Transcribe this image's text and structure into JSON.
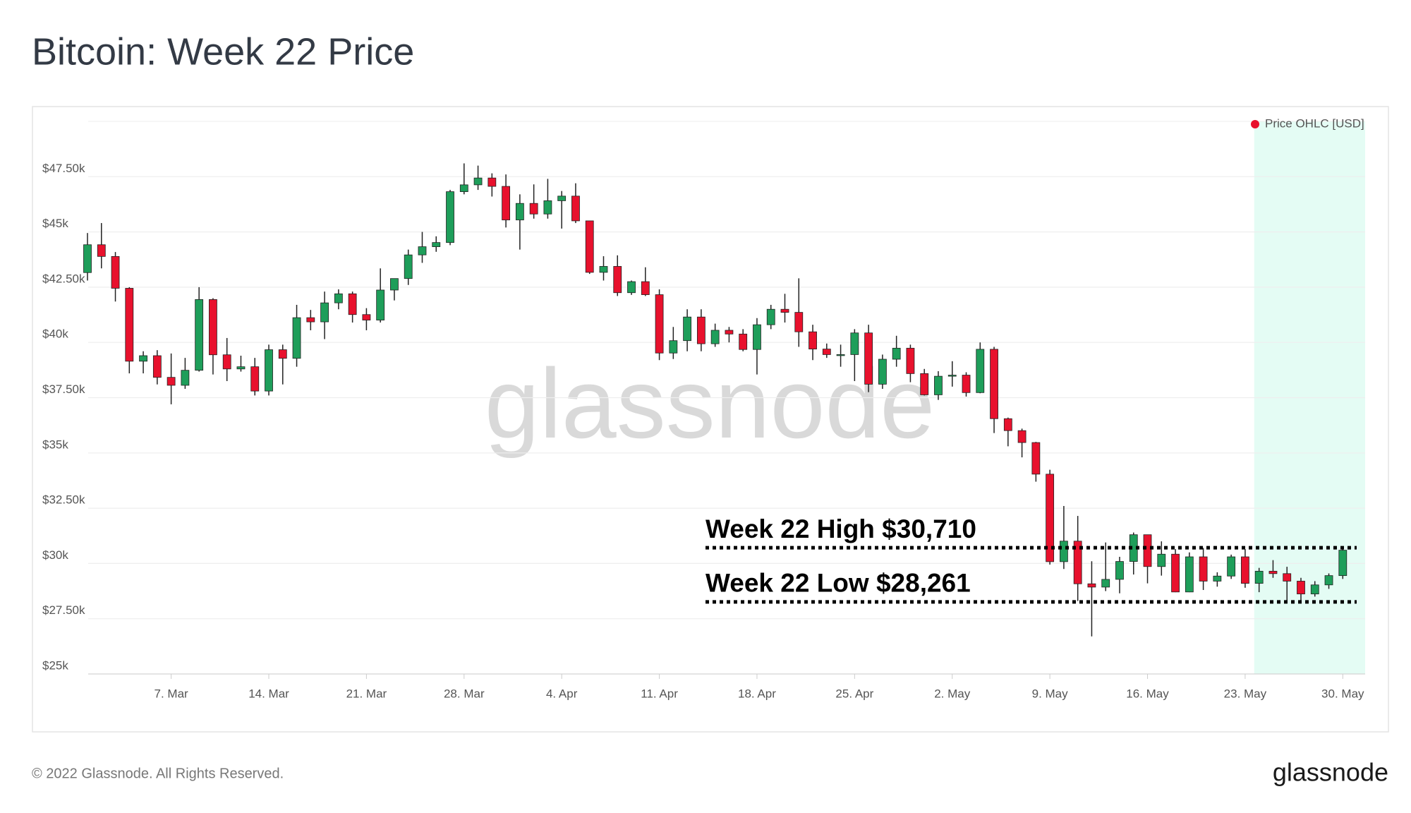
{
  "header": {
    "title": "Bitcoin: Week 22 Price"
  },
  "chart_data": {
    "type": "candlestick",
    "legend": "Price OHLC [USD]",
    "legend_color": "#e8112d",
    "legend_position": "upper right",
    "watermark": "glassnode",
    "up_color": "#1e9e5a",
    "down_color": "#e8112d",
    "categories": [
      "1. Mar",
      "2. Mar",
      "3. Mar",
      "4. Mar",
      "5. Mar",
      "6. Mar",
      "7. Mar",
      "8. Mar",
      "9. Mar",
      "10. Mar",
      "11. Mar",
      "12. Mar",
      "13. Mar",
      "14. Mar",
      "15. Mar",
      "16. Mar",
      "17. Mar",
      "18. Mar",
      "19. Mar",
      "20. Mar",
      "21. Mar",
      "22. Mar",
      "23. Mar",
      "24. Mar",
      "25. Mar",
      "26. Mar",
      "27. Mar",
      "28. Mar",
      "29. Mar",
      "30. Mar",
      "31. Mar",
      "1. Apr",
      "2. Apr",
      "3. Apr",
      "4. Apr",
      "5. Apr",
      "6. Apr",
      "7. Apr",
      "8. Apr",
      "9. Apr",
      "10. Apr",
      "11. Apr",
      "12. Apr",
      "13. Apr",
      "14. Apr",
      "15. Apr",
      "16. Apr",
      "17. Apr",
      "18. Apr",
      "19. Apr",
      "20. Apr",
      "21. Apr",
      "22. Apr",
      "23. Apr",
      "24. Apr",
      "25. Apr",
      "26. Apr",
      "27. Apr",
      "28. Apr",
      "29. Apr",
      "30. Apr",
      "1. May",
      "2. May",
      "3. May",
      "4. May",
      "5. May",
      "6. May",
      "7. May",
      "8. May",
      "9. May",
      "10. May",
      "11. May",
      "12. May",
      "13. May",
      "14. May",
      "15. May",
      "16. May",
      "17. May",
      "18. May",
      "19. May",
      "20. May",
      "21. May",
      "22. May",
      "23. May",
      "24. May",
      "25. May",
      "26. May",
      "27. May",
      "28. May",
      "29. May",
      "30. May"
    ],
    "open": [
      43160,
      44420,
      43890,
      42450,
      39150,
      39400,
      38420,
      38060,
      38740,
      41940,
      39440,
      38800,
      38900,
      37800,
      39670,
      39280,
      41120,
      40930,
      41790,
      42200,
      41260,
      41010,
      42370,
      42890,
      43960,
      44330,
      44520,
      46820,
      47130,
      47440,
      47060,
      45540,
      46290,
      45810,
      46410,
      46620,
      45500,
      43170,
      43440,
      42250,
      42750,
      42160,
      39520,
      40080,
      41150,
      39940,
      40550,
      40380,
      39680,
      40800,
      41500,
      41360,
      40480,
      39700,
      39450,
      39450,
      40430,
      38110,
      39240,
      39740,
      38590,
      37630,
      38470,
      38520,
      37730,
      39690,
      36550,
      36010,
      35470,
      34040,
      30080,
      31010,
      29080,
      28930,
      29280,
      30090,
      31300,
      29860,
      30420,
      28710,
      30300,
      29200,
      29430,
      30300,
      29100,
      29650,
      29540,
      29200,
      28620,
      29030,
      29450
    ],
    "high": [
      44950,
      45400,
      44090,
      42500,
      39600,
      39650,
      39500,
      39300,
      42500,
      42000,
      40200,
      39400,
      39300,
      39900,
      39900,
      41700,
      41470,
      42300,
      42400,
      42300,
      41550,
      43350,
      42850,
      44200,
      45000,
      44800,
      46900,
      48100,
      48000,
      47650,
      47600,
      46700,
      47150,
      47400,
      46850,
      47200,
      45500,
      43900,
      43940,
      42800,
      43400,
      42400,
      40700,
      41500,
      41500,
      40850,
      40700,
      40600,
      41100,
      41700,
      42200,
      42900,
      40800,
      39950,
      39900,
      40600,
      40800,
      39450,
      40300,
      39900,
      38800,
      38700,
      39150,
      38650,
      40000,
      39800,
      36600,
      36100,
      35500,
      34240,
      32600,
      32150,
      30100,
      30950,
      30300,
      31400,
      31300,
      31000,
      30650,
      30500,
      30700,
      29600,
      30400,
      30650,
      29800,
      30150,
      29850,
      29350,
      29200,
      29550,
      30710
    ],
    "low": [
      42800,
      43350,
      41850,
      38600,
      38600,
      38100,
      37200,
      37900,
      38680,
      38550,
      38250,
      38680,
      37600,
      37600,
      38100,
      38900,
      40550,
      40150,
      41500,
      40900,
      40550,
      40900,
      41900,
      42600,
      43600,
      44100,
      44400,
      46700,
      46900,
      46600,
      45200,
      44200,
      45600,
      45600,
      45150,
      45400,
      43100,
      42800,
      42100,
      42150,
      42100,
      39200,
      39250,
      39600,
      39600,
      39800,
      40000,
      39600,
      38550,
      40600,
      40900,
      39800,
      39200,
      39300,
      38900,
      38250,
      37750,
      37900,
      38900,
      38200,
      37600,
      37400,
      38000,
      37550,
      37700,
      35900,
      35300,
      34800,
      33700,
      29950,
      29750,
      28300,
      26700,
      28750,
      28650,
      29500,
      29100,
      29450,
      28700,
      28700,
      28800,
      28950,
      29300,
      28900,
      28700,
      29350,
      28261,
      28300,
      28500,
      28850,
      29300
    ],
    "close": [
      44420,
      43890,
      42450,
      39150,
      39400,
      38420,
      38060,
      38740,
      41940,
      39440,
      38800,
      38900,
      37800,
      39670,
      39280,
      41120,
      40930,
      41790,
      42200,
      41260,
      41010,
      42370,
      42890,
      43960,
      44330,
      44520,
      46820,
      47130,
      47440,
      47060,
      45540,
      46290,
      45810,
      46410,
      46620,
      45500,
      43170,
      43440,
      42250,
      42750,
      42160,
      39520,
      40080,
      41150,
      39940,
      40550,
      40380,
      39680,
      40800,
      41500,
      41360,
      40480,
      39700,
      39450,
      39450,
      40430,
      38110,
      39240,
      39740,
      38590,
      37630,
      38470,
      38520,
      37730,
      39690,
      36550,
      36010,
      35470,
      34040,
      30080,
      31010,
      29080,
      28930,
      29280,
      30090,
      31300,
      29860,
      30420,
      28710,
      30300,
      29200,
      29430,
      30300,
      29100,
      29650,
      29540,
      29200,
      28620,
      29030,
      29450,
      30600
    ],
    "xticks": [
      "7. Mar",
      "14. Mar",
      "21. Mar",
      "28. Mar",
      "4. Apr",
      "11. Apr",
      "18. Apr",
      "25. Apr",
      "2. May",
      "9. May",
      "16. May",
      "23. May",
      "30. May"
    ],
    "ylim": [
      25000,
      50000
    ],
    "yticks": [
      {
        "value": 25000,
        "label": "$25k"
      },
      {
        "value": 27500,
        "label": "$27.50k"
      },
      {
        "value": 30000,
        "label": "$30k"
      },
      {
        "value": 32500,
        "label": "$32.50k"
      },
      {
        "value": 35000,
        "label": "$35k"
      },
      {
        "value": 37500,
        "label": "$37.50k"
      },
      {
        "value": 40000,
        "label": "$40k"
      },
      {
        "value": 42500,
        "label": "$42.50k"
      },
      {
        "value": 45000,
        "label": "$45k"
      },
      {
        "value": 47500,
        "label": "$47.50k"
      }
    ],
    "grid": true,
    "annotations": [
      {
        "text": "Week 22 High $30,710",
        "value": 30710
      },
      {
        "text": "Week 22 Low $28,261",
        "value": 28261
      }
    ],
    "highlight_from": "23. May"
  },
  "footer": {
    "copyright": "© 2022 Glassnode. All Rights Reserved.",
    "logo": "glassnode"
  }
}
